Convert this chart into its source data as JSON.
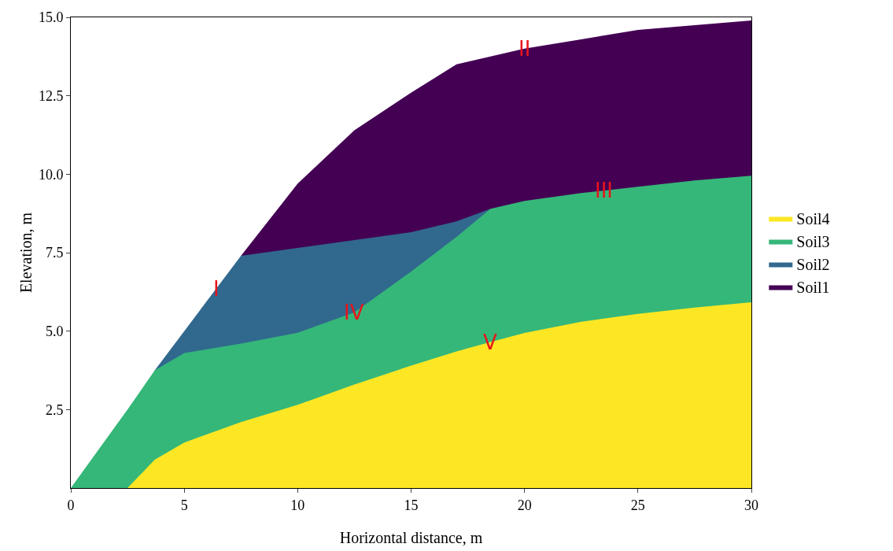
{
  "chart_data": {
    "type": "area",
    "xlabel": "Horizontal distance, m",
    "ylabel": "Elevation, m",
    "x": [
      0,
      2.5,
      3.7,
      5,
      7.5,
      10,
      12.5,
      15,
      17,
      18.5,
      20,
      22.5,
      25,
      27.5,
      30
    ],
    "series": [
      {
        "name": "Soil1",
        "color": "#440154",
        "x": [
          7.5,
          10,
          12.5,
          15,
          17,
          18.5,
          20,
          22.5,
          25,
          27.5,
          30
        ],
        "values": [
          7.4,
          9.7,
          11.4,
          12.6,
          13.5,
          13.75,
          14.0,
          14.3,
          14.6,
          14.75,
          14.9
        ]
      },
      {
        "name": "Soil2",
        "color": "#31688e",
        "x": [
          3.7,
          5,
          7.5,
          10,
          12.5,
          15,
          17,
          18.5
        ],
        "values": [
          3.75,
          5.0,
          7.4,
          7.65,
          7.9,
          8.15,
          8.5,
          8.9
        ]
      },
      {
        "name": "Soil3",
        "color": "#35b779",
        "values": [
          0,
          2.5,
          3.75,
          4.3,
          4.6,
          4.95,
          5.6,
          6.9,
          8.0,
          8.9,
          9.15,
          9.4,
          9.6,
          9.8,
          9.95
        ]
      },
      {
        "name": "Soil4",
        "color": "#fde725",
        "values": [
          0,
          0,
          0.9,
          1.45,
          2.1,
          2.65,
          3.3,
          3.9,
          4.35,
          4.65,
          4.94,
          5.3,
          5.55,
          5.75,
          5.92
        ]
      }
    ],
    "xlim": [
      0,
      30
    ],
    "xticks": [
      0,
      5,
      10,
      15,
      20,
      25,
      30
    ],
    "ylim": [
      0,
      15
    ],
    "yticks": [
      {
        "value": 2.5,
        "label": "2.5"
      },
      {
        "value": 5,
        "label": "5.0"
      },
      {
        "value": 7.5,
        "label": "7.5"
      },
      {
        "value": 10,
        "label": "10.0"
      },
      {
        "value": 12.5,
        "label": "12.5"
      },
      {
        "value": 15,
        "label": "15.0"
      }
    ],
    "grid": false,
    "legend": "right",
    "annotations": [
      {
        "text": "I",
        "x": 6.4,
        "y": 6.34
      },
      {
        "text": "II",
        "x": 20,
        "y": 14.0
      },
      {
        "text": "III",
        "x": 23.5,
        "y": 9.48
      },
      {
        "text": "IV",
        "x": 12.5,
        "y": 5.6
      },
      {
        "text": "V",
        "x": 18.5,
        "y": 4.65
      }
    ]
  }
}
